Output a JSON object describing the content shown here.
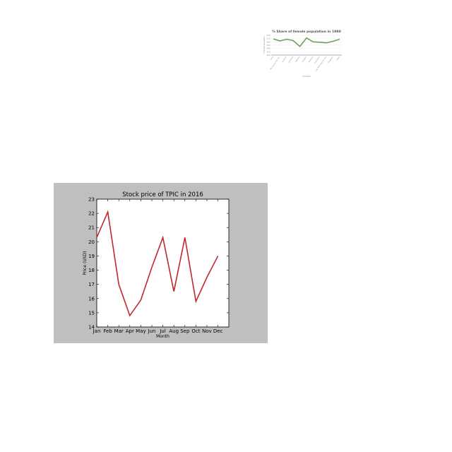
{
  "chart_data": [
    {
      "type": "line",
      "title": "% Share of female population in 1980",
      "xlabel": "Countries",
      "ylabel": "% Female population",
      "categories": [
        "Cuba",
        "Micronesia, Fed. Sts.",
        "Lebanon",
        "Lithuania",
        "Namibia",
        "Hungary",
        "Maldives",
        "Costa Rica",
        "Sao Tome and Principe",
        "Singapore",
        "Qatar"
      ],
      "values": [
        50.9,
        50.3,
        50.8,
        50.4,
        48.6,
        51.2,
        50.0,
        49.9,
        49.7,
        50.2,
        50.8
      ],
      "ytick_labels": [
        "52.0",
        "51.0",
        "50.0",
        "49.0",
        "48.0",
        "47.0",
        "46.0"
      ],
      "ylim": [
        46,
        52
      ],
      "color": "#6fa15a"
    },
    {
      "type": "line",
      "title": "Stock price of TPIC in 2016",
      "xlabel": "Month",
      "ylabel": "Price (USD)",
      "categories": [
        "Jan",
        "Feb",
        "Mar",
        "Apr",
        "May",
        "Jun",
        "Jul",
        "Aug",
        "Sep",
        "Oct",
        "Nov",
        "Dec"
      ],
      "values": [
        20.3,
        22.1,
        17.0,
        14.8,
        15.9,
        18.2,
        20.3,
        16.5,
        20.3,
        15.8,
        17.5,
        19.0
      ],
      "ylim": [
        14,
        23
      ],
      "yticks": [
        14,
        15,
        16,
        17,
        18,
        19,
        20,
        21,
        22,
        23
      ],
      "color": "#c0282d",
      "figure_background": "#bfbfbf",
      "grid": false
    }
  ]
}
